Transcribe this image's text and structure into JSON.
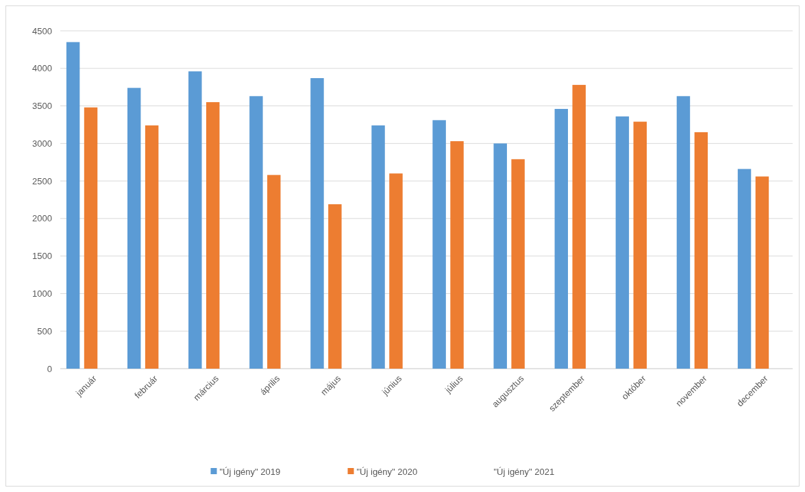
{
  "chart_data": {
    "type": "bar",
    "categories": [
      "január",
      "február",
      "március",
      "április",
      "május",
      "június",
      "július",
      "augusztus",
      "szeptember",
      "október",
      "november",
      "december"
    ],
    "series": [
      {
        "name": "\"Új igény\" 2019",
        "color": "#5b9bd5",
        "values": [
          4350,
          3740,
          3960,
          3630,
          3870,
          3240,
          3310,
          3000,
          3460,
          3360,
          3630,
          2660
        ]
      },
      {
        "name": "\"Új igény\" 2020",
        "color": "#ed7d31",
        "values": [
          3480,
          3240,
          3550,
          2580,
          2190,
          2600,
          3030,
          2790,
          3780,
          3290,
          3150,
          2560
        ]
      },
      {
        "name": "\"Új igény\" 2021",
        "values": [
          null,
          null,
          null,
          null,
          null,
          null,
          null,
          null,
          null,
          null,
          null,
          null
        ]
      }
    ],
    "ylim": [
      0,
      4500
    ],
    "yticks": [
      0,
      500,
      1000,
      1500,
      2000,
      2500,
      3000,
      3500,
      4000,
      4500
    ],
    "grid": "y",
    "legend": "bottom"
  }
}
